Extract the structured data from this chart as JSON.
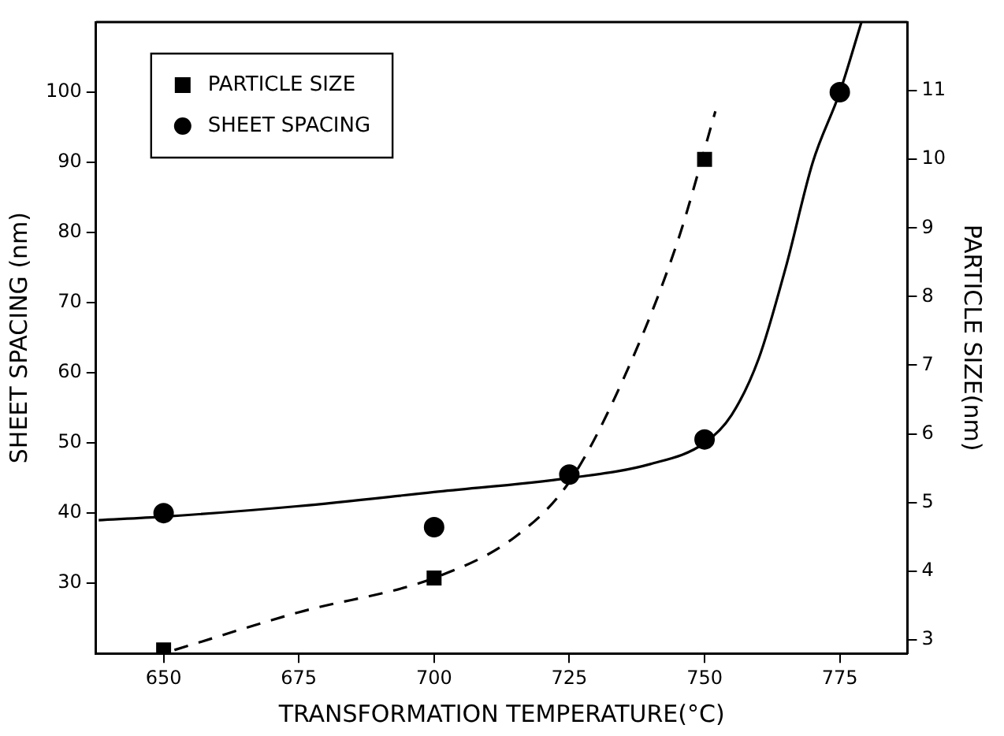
{
  "chart_data": {
    "type": "scatter",
    "xlabel": "TRANSFORMATION TEMPERATURE(°C)",
    "ylabel": "SHEET SPACING (nm)",
    "y2label": "PARTICLE SIZE(nm)",
    "xlim": [
      637.5,
      787.5
    ],
    "xticks": [
      650,
      675,
      700,
      725,
      750,
      775
    ],
    "ylim": [
      20,
      110
    ],
    "yticks": [
      30,
      40,
      50,
      60,
      70,
      80,
      90,
      100
    ],
    "y2lim": [
      2.8,
      12
    ],
    "y2ticks": [
      3,
      4,
      5,
      6,
      7,
      8,
      9,
      10,
      11
    ],
    "grid": false,
    "legend": "top left",
    "series": [
      {
        "name": "PARTICLE SIZE",
        "axis": "y2",
        "marker": "square",
        "color": "#000000",
        "x": [
          650,
          700,
          750
        ],
        "values": [
          2.85,
          3.9,
          10.0
        ]
      },
      {
        "name": "SHEET SPACING",
        "axis": "y",
        "marker": "circle",
        "color": "#000000",
        "x": [
          650,
          700,
          725,
          750,
          775
        ],
        "values": [
          40,
          38,
          45.5,
          50.5,
          100
        ]
      },
      {
        "type": "line",
        "axis": "y2",
        "marker": "none",
        "line_style": "dashed",
        "color": "#000000",
        "x": [
          652,
          675,
          700,
          715,
          725,
          735,
          745,
          752
        ],
        "values": [
          2.85,
          3.4,
          3.9,
          4.5,
          5.3,
          6.8,
          8.8,
          10.7
        ]
      },
      {
        "type": "line",
        "axis": "y",
        "marker": "none",
        "line_style": "solid",
        "color": "#000000",
        "x": [
          638,
          650,
          675,
          700,
          725,
          740,
          750,
          755,
          760,
          765,
          770,
          775,
          779
        ],
        "values": [
          39,
          39.5,
          41,
          43,
          45,
          47,
          50,
          54,
          62,
          75,
          90,
          100,
          110
        ]
      }
    ]
  }
}
